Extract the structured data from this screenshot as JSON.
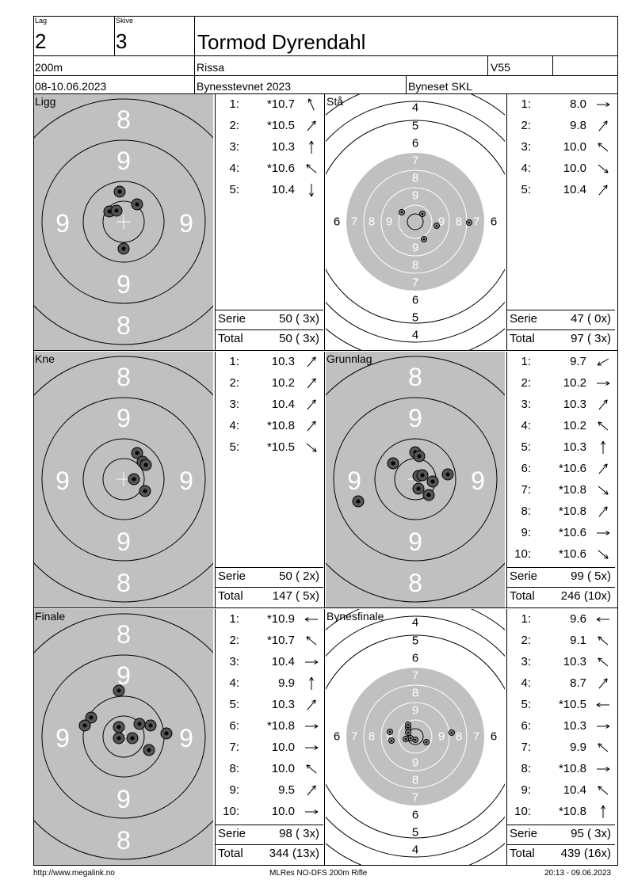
{
  "header": {
    "lag_label": "Lag",
    "lag": "2",
    "skive_label": "Skive",
    "skive": "3",
    "name": "Tormod Dyrendahl",
    "distance": "200m",
    "club": "Rissa",
    "class": "V55",
    "dates": "08-10.06.2023",
    "event": "Bynesstevnet 2023",
    "organizer": "Byneset SKL"
  },
  "panels": [
    {
      "id": "ligg",
      "label": "Ligg",
      "target": "small",
      "rings_labels": {
        "top": [
          "8",
          "9"
        ],
        "side": [
          "9",
          "9"
        ],
        "bottom": [
          "9",
          "8"
        ]
      },
      "shots": [
        {
          "no": "1:",
          "val": "*10.7",
          "dir": "nw-up"
        },
        {
          "no": "2:",
          "val": "*10.5",
          "dir": "ne"
        },
        {
          "no": "3:",
          "val": "10.3",
          "dir": "n"
        },
        {
          "no": "4:",
          "val": "*10.6",
          "dir": "nw"
        },
        {
          "no": "5:",
          "val": "10.4",
          "dir": "s"
        }
      ],
      "serie_label": "Serie",
      "serie": "50 ( 3x)",
      "total_label": "Total",
      "total": "50 ( 3x)"
    },
    {
      "id": "sta",
      "label": "Stå",
      "target": "large",
      "rings_labels": {
        "top": [
          "4",
          "5",
          "6",
          "7",
          "8",
          "9"
        ],
        "side": [
          "6",
          "7",
          "8",
          "9",
          "9",
          "8",
          "7",
          "6"
        ],
        "bottom": [
          "9",
          "8",
          "7",
          "6",
          "5",
          "4"
        ]
      },
      "shots": [
        {
          "no": "1:",
          "val": "8.0",
          "dir": "e"
        },
        {
          "no": "2:",
          "val": "9.8",
          "dir": "ne"
        },
        {
          "no": "3:",
          "val": "10.0",
          "dir": "nw"
        },
        {
          "no": "4:",
          "val": "10.0",
          "dir": "se"
        },
        {
          "no": "5:",
          "val": "10.4",
          "dir": "ne"
        }
      ],
      "serie_label": "Serie",
      "serie": "47 ( 0x)",
      "total_label": "Total",
      "total": "97 ( 3x)"
    },
    {
      "id": "kne",
      "label": "Kne",
      "target": "small",
      "rings_labels": {
        "top": [
          "8",
          "9"
        ],
        "side": [
          "9",
          "9"
        ],
        "bottom": [
          "9",
          "8"
        ]
      },
      "shots": [
        {
          "no": "1:",
          "val": "10.3",
          "dir": "ne"
        },
        {
          "no": "2:",
          "val": "10.2",
          "dir": "ne"
        },
        {
          "no": "3:",
          "val": "10.4",
          "dir": "ne"
        },
        {
          "no": "4:",
          "val": "*10.8",
          "dir": "ne"
        },
        {
          "no": "5:",
          "val": "*10.5",
          "dir": "se"
        }
      ],
      "serie_label": "Serie",
      "serie": "50 ( 2x)",
      "total_label": "Total",
      "total": "147 ( 5x)"
    },
    {
      "id": "grunnlag",
      "label": "Grunnlag",
      "target": "small",
      "rings_labels": {
        "top": [
          "8",
          "9"
        ],
        "side": [
          "9",
          "9"
        ],
        "bottom": [
          "9",
          "8"
        ]
      },
      "shots": [
        {
          "no": "1:",
          "val": "9.7",
          "dir": "sw"
        },
        {
          "no": "2:",
          "val": "10.2",
          "dir": "e"
        },
        {
          "no": "3:",
          "val": "10.3",
          "dir": "ne"
        },
        {
          "no": "4:",
          "val": "10.2",
          "dir": "nw"
        },
        {
          "no": "5:",
          "val": "10.3",
          "dir": "n"
        },
        {
          "no": "6:",
          "val": "*10.6",
          "dir": "ne"
        },
        {
          "no": "7:",
          "val": "*10.8",
          "dir": "se"
        },
        {
          "no": "8:",
          "val": "*10.8",
          "dir": "ne"
        },
        {
          "no": "9:",
          "val": "*10.6",
          "dir": "e"
        },
        {
          "no": "10:",
          "val": "*10.6",
          "dir": "se"
        }
      ],
      "serie_label": "Serie",
      "serie": "99 ( 5x)",
      "total_label": "Total",
      "total": "246 (10x)"
    },
    {
      "id": "finale",
      "label": "Finale",
      "target": "small",
      "rings_labels": {
        "top": [
          "8",
          "9"
        ],
        "side": [
          "9",
          "9"
        ],
        "bottom": [
          "9",
          "8"
        ]
      },
      "shots": [
        {
          "no": "1:",
          "val": "*10.9",
          "dir": "w"
        },
        {
          "no": "2:",
          "val": "*10.7",
          "dir": "nw"
        },
        {
          "no": "3:",
          "val": "10.4",
          "dir": "e"
        },
        {
          "no": "4:",
          "val": "9.9",
          "dir": "n"
        },
        {
          "no": "5:",
          "val": "10.3",
          "dir": "ne"
        },
        {
          "no": "6:",
          "val": "*10.8",
          "dir": "e"
        },
        {
          "no": "7:",
          "val": "10.0",
          "dir": "e"
        },
        {
          "no": "8:",
          "val": "10.0",
          "dir": "nw"
        },
        {
          "no": "9:",
          "val": "9.5",
          "dir": "ne"
        },
        {
          "no": "10:",
          "val": "10.0",
          "dir": "e"
        }
      ],
      "serie_label": "Serie",
      "serie": "98 ( 3x)",
      "total_label": "Total",
      "total": "344 (13x)"
    },
    {
      "id": "bynesfinale",
      "label": "Bynesfinale",
      "target": "large",
      "rings_labels": {
        "top": [
          "4",
          "5",
          "6",
          "7",
          "8",
          "9"
        ],
        "side": [
          "6",
          "7",
          "8",
          "9",
          "9",
          "8",
          "7",
          "6"
        ],
        "bottom": [
          "9",
          "8",
          "7",
          "6",
          "5",
          "4"
        ]
      },
      "shots": [
        {
          "no": "1:",
          "val": "9.6",
          "dir": "w"
        },
        {
          "no": "2:",
          "val": "9.1",
          "dir": "nw"
        },
        {
          "no": "3:",
          "val": "10.3",
          "dir": "nw"
        },
        {
          "no": "4:",
          "val": "8.7",
          "dir": "ne"
        },
        {
          "no": "5:",
          "val": "*10.5",
          "dir": "w"
        },
        {
          "no": "6:",
          "val": "10.3",
          "dir": "e"
        },
        {
          "no": "7:",
          "val": "9.9",
          "dir": "nw"
        },
        {
          "no": "8:",
          "val": "*10.8",
          "dir": "e"
        },
        {
          "no": "9:",
          "val": "10.4",
          "dir": "nw"
        },
        {
          "no": "10:",
          "val": "*10.8",
          "dir": "n"
        }
      ],
      "serie_label": "Serie",
      "serie": "95 ( 3x)",
      "total_label": "Total",
      "total": "439 (16x)"
    }
  ],
  "footer": {
    "left": "http://www.megalink.no",
    "center": "MLRes NO-DFS 200m Rifle",
    "right": "20:13 - 09.06.2023"
  }
}
